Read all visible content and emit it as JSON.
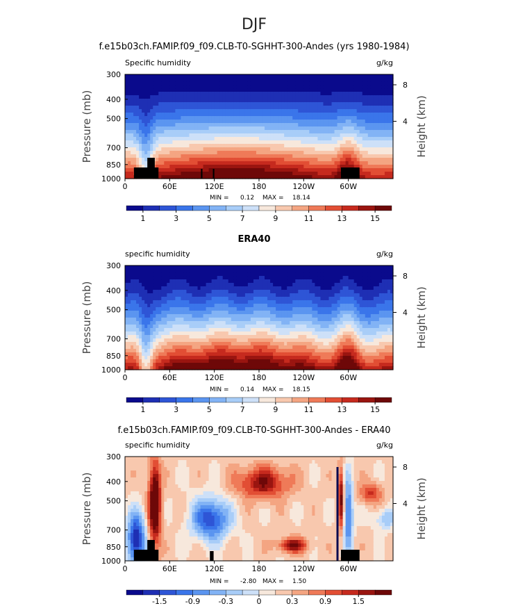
{
  "figure": {
    "season": "DJF"
  },
  "colors": {
    "humidity_levels": [
      "#0a0a8c",
      "#1e2fb4",
      "#2e55d6",
      "#3a75ea",
      "#5b95f0",
      "#82b3f5",
      "#a8cdf8",
      "#cde0f8",
      "#f7e8dc",
      "#f8c8ae",
      "#f4a582",
      "#ef7a58",
      "#e24e34",
      "#c62a1e",
      "#9a1510",
      "#6e0808"
    ],
    "diff_levels": [
      "#0a0a8c",
      "#1e2fb4",
      "#2e55d6",
      "#3a75ea",
      "#5b95f0",
      "#82b3f5",
      "#a8cdf8",
      "#cde0f8",
      "#f7e8dc",
      "#f8c8ae",
      "#f4a582",
      "#ef7a58",
      "#e24e34",
      "#c62a1e",
      "#9a1510",
      "#6e0808"
    ],
    "topography": "#000000"
  },
  "chart_data": [
    {
      "type": "heatmap",
      "title": "f.e15b03ch.FAMIP.f09_f09.CLB-T0-SGHHT-300-Andes (yrs 1980-1984)",
      "left_label": "Specific humidity",
      "units": "g/kg",
      "xlabel": "",
      "ylabel": "Pressure (mb)",
      "y2label": "Height (km)",
      "x_ticks": [
        "0",
        "60E",
        "120E",
        "180",
        "120W",
        "60W"
      ],
      "y_ticks": [
        "300",
        "400",
        "500",
        "700",
        "850",
        "1000"
      ],
      "y2_ticks": [
        "8",
        "4"
      ],
      "ylim": [
        1000,
        300
      ],
      "stats": {
        "min_label": "MIN =",
        "min": "0.12",
        "max_label": "MAX =",
        "max": "18.14"
      },
      "colorbar_labels": [
        "1",
        "3",
        "5",
        "7",
        "9",
        "11",
        "13",
        "15"
      ],
      "topography_at_lon": [
        18,
        26,
        72,
        76,
        86,
        285,
        300
      ]
    },
    {
      "type": "heatmap",
      "title": "ERA40",
      "left_label": "specific humidity",
      "units": "g/kg",
      "xlabel": "",
      "ylabel": "Pressure (mb)",
      "y2label": "Height (km)",
      "x_ticks": [
        "0",
        "60E",
        "120E",
        "180",
        "120W",
        "60W"
      ],
      "y_ticks": [
        "300",
        "400",
        "500",
        "700",
        "850",
        "1000"
      ],
      "y2_ticks": [
        "8",
        "4"
      ],
      "ylim": [
        1000,
        300
      ],
      "stats": {
        "min_label": "MIN =",
        "min": "0.14",
        "max_label": "MAX =",
        "max": "18.15"
      },
      "colorbar_labels": [
        "1",
        "3",
        "5",
        "7",
        "9",
        "11",
        "13",
        "15"
      ]
    },
    {
      "type": "heatmap",
      "title": "f.e15b03ch.FAMIP.f09_f09.CLB-T0-SGHHT-300-Andes - ERA40",
      "left_label": "specific humidity",
      "units": "g/kg",
      "xlabel": "",
      "ylabel": "Pressure (mb)",
      "y2label": "Height (km)",
      "x_ticks": [
        "0",
        "60E",
        "120E",
        "180",
        "120W",
        "60W"
      ],
      "y_ticks": [
        "300",
        "400",
        "500",
        "700",
        "850",
        "1000"
      ],
      "y2_ticks": [
        "8",
        "4"
      ],
      "ylim": [
        1000,
        300
      ],
      "stats": {
        "min_label": "MIN =",
        "min": "-2.80",
        "max_label": "MAX =",
        "max": "1.50"
      },
      "colorbar_labels": [
        "-1.5",
        "-0.9",
        "-0.3",
        "0",
        "0.3",
        "0.9",
        "1.5"
      ]
    }
  ]
}
